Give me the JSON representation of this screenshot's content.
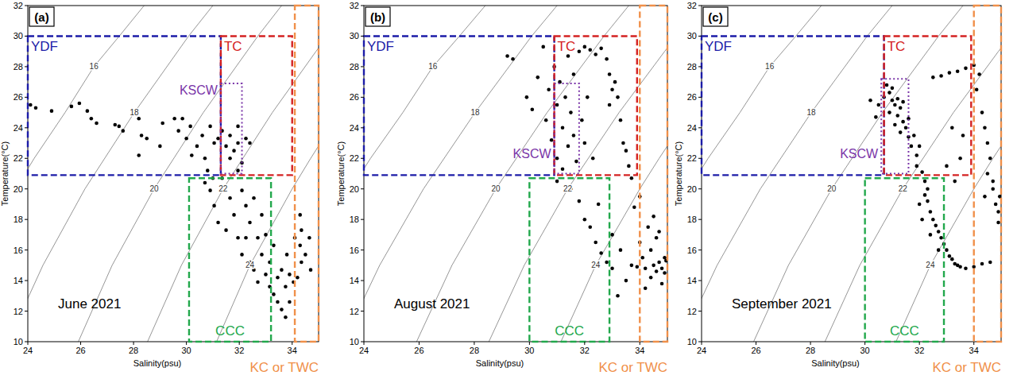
{
  "chart_data": [
    {
      "type": "scatter",
      "panel_label": "(a)",
      "title": "June 2021",
      "x_label": "Salinity(psu)",
      "y_label": "Temperature(°C)",
      "xlim": [
        24,
        35
      ],
      "ylim": [
        10,
        32
      ],
      "xticks": [
        24,
        26,
        28,
        30,
        32,
        34
      ],
      "yticks": [
        10,
        12,
        14,
        16,
        18,
        20,
        22,
        24,
        26,
        28,
        30,
        32
      ],
      "series": [
        {
          "color": "#000000",
          "marker": "circle",
          "x": [
            24.1,
            24.3,
            24.9,
            25.65,
            25.95,
            26.25,
            26.6,
            26.4,
            27.3,
            27.6,
            27.45,
            28.2,
            28.3,
            28.5,
            28.2,
            29.0,
            29.1,
            29.55,
            29.7,
            29.85,
            30.0,
            30.15,
            30.2,
            30.4,
            30.6,
            30.7,
            30.8,
            30.9,
            31.05,
            31.2,
            31.35,
            31.5,
            31.65,
            31.8,
            31.95,
            31.95,
            32.1,
            32.25,
            32.4,
            31.65,
            31.95,
            30.9,
            31.05,
            31.2,
            31.5,
            31.65,
            31.8,
            31.95,
            32.1,
            32.1,
            32.25,
            32.25,
            32.4,
            32.4,
            32.55,
            32.55,
            32.7,
            32.7,
            32.85,
            32.85,
            33.0,
            33.0,
            33.15,
            33.15,
            33.3,
            33.3,
            33.45,
            33.45,
            33.6,
            33.6,
            33.75,
            33.75,
            33.8,
            33.9,
            33.9,
            31.35,
            30.7,
            31.0,
            34.3,
            34.35,
            34.3,
            34.35,
            34.2,
            34.5,
            34.65,
            34.7,
            34.05,
            34.1
          ],
          "values": [
            25.5,
            25.3,
            25.1,
            25.4,
            25.6,
            25.1,
            24.3,
            24.6,
            24.2,
            23.8,
            24.1,
            24.6,
            23.5,
            23.3,
            22.2,
            22.8,
            24.3,
            24.6,
            23.8,
            24.6,
            23.3,
            24.1,
            22.2,
            22.8,
            23.5,
            22.0,
            21.2,
            24.1,
            23.0,
            23.3,
            23.8,
            22.8,
            23.5,
            22.5,
            24.1,
            23.0,
            21.7,
            23.3,
            23.0,
            22.0,
            21.2,
            19.9,
            18.9,
            17.8,
            17.3,
            19.4,
            18.3,
            16.8,
            19.9,
            15.7,
            18.9,
            16.8,
            17.8,
            15.2,
            19.4,
            14.7,
            16.8,
            13.9,
            18.3,
            15.7,
            14.4,
            17.0,
            13.6,
            15.2,
            16.3,
            13.1,
            14.2,
            12.6,
            12.1,
            14.7,
            11.6,
            13.6,
            15.7,
            14.4,
            12.6,
            20.7,
            20.4,
            20.7,
            18.3,
            17.3,
            16.3,
            15.2,
            14.2,
            15.7,
            16.8,
            14.7,
            13.9,
            16.8
          ]
        }
      ],
      "regions": [
        {
          "label": "YDF",
          "color": "#1c1ca8",
          "line_style": "dashed",
          "x": [
            24,
            31.3
          ],
          "y": [
            20.9,
            30
          ]
        },
        {
          "label": "TC",
          "color": "#d42222",
          "line_style": "dashed",
          "x": [
            31.3,
            34
          ],
          "y": [
            20.9,
            30
          ]
        },
        {
          "label": "KSCW",
          "color": "#7a35a8",
          "line_style": "dotted",
          "x": [
            31.3,
            32.1
          ],
          "y": [
            21,
            26.9
          ]
        },
        {
          "label": "CCC",
          "color": "#22a84c",
          "line_style": "dashed",
          "x": [
            30.1,
            33.2
          ],
          "y": [
            10,
            20.7
          ]
        },
        {
          "label": "KC or TWC",
          "color": "#f0904a",
          "line_style": "dashed",
          "x": [
            34.1,
            35
          ],
          "y": [
            10,
            32
          ]
        }
      ],
      "isopycnals": [
        {
          "label": "16",
          "x": [
            23.54,
            24.24,
            25.41,
            26.5,
            27.46,
            28.4
          ],
          "y": [
            20,
            22,
            25,
            28,
            30,
            32
          ]
        },
        {
          "label": "18",
          "x": [
            23.78,
            24.57,
            26.16,
            28.03,
            30.08,
            31.0
          ],
          "y": [
            12,
            15,
            20,
            25,
            30,
            32
          ]
        },
        {
          "label": "20",
          "x": [
            25.91,
            27.19,
            28.78,
            30.64,
            32.7,
            33.6
          ],
          "y": [
            10,
            15,
            20,
            25,
            30,
            32
          ]
        },
        {
          "label": "22",
          "x": [
            28.53,
            29.81,
            31.39,
            33.25,
            34.9,
            35.34
          ],
          "y": [
            10,
            15,
            20,
            25,
            29,
            30
          ]
        },
        {
          "label": "24",
          "x": [
            31.14,
            32.4,
            34.0,
            34.7,
            35.07
          ],
          "y": [
            10,
            15,
            20,
            22,
            23
          ]
        }
      ]
    },
    {
      "type": "scatter",
      "panel_label": "(b)",
      "title": "August 2021",
      "x_label": "Salinity(psu)",
      "y_label": "Temperature(°C)",
      "xlim": [
        24,
        35
      ],
      "ylim": [
        10,
        32
      ],
      "xticks": [
        24,
        26,
        28,
        30,
        32,
        34
      ],
      "yticks": [
        10,
        12,
        14,
        16,
        18,
        20,
        22,
        24,
        26,
        28,
        30,
        32
      ],
      "series": [
        {
          "color": "#000000",
          "marker": "circle",
          "x": [
            29.2,
            29.4,
            29.9,
            30.1,
            30.3,
            30.5,
            30.6,
            30.7,
            30.8,
            30.9,
            31.0,
            31.0,
            31.1,
            31.2,
            31.2,
            31.3,
            31.4,
            31.4,
            31.5,
            31.6,
            31.6,
            31.7,
            31.8,
            31.9,
            32.0,
            32.2,
            32.4,
            32.6,
            32.8,
            32.9,
            33.0,
            33.1,
            33.2,
            32.9,
            33.3,
            33.4,
            33.5,
            33.6,
            33.7,
            32.0,
            32.3,
            32.1,
            31.0,
            31.5,
            31.8,
            32.0,
            32.2,
            32.4,
            32.6,
            32.8,
            33.0,
            32.5,
            33.0,
            33.3,
            33.2,
            33.5,
            33.8,
            34.0,
            34.0,
            34.1,
            34.2,
            34.3,
            34.4,
            34.4,
            34.5,
            34.5,
            34.6,
            34.6,
            34.7,
            34.7,
            34.8,
            34.8,
            34.9,
            33.9,
            33.7,
            34.2,
            34.95,
            34.9
          ],
          "values": [
            28.7,
            28.5,
            26.0,
            25.2,
            27.3,
            29.3,
            24.5,
            26.5,
            23.2,
            28.0,
            22.0,
            25.5,
            27.0,
            24.0,
            21.3,
            26.0,
            22.8,
            28.7,
            25.0,
            23.5,
            27.5,
            21.8,
            29.0,
            24.5,
            29.3,
            29.1,
            28.8,
            29.2,
            28.5,
            27.5,
            26.5,
            27.0,
            26.0,
            25.5,
            24.5,
            23.0,
            22.5,
            21.5,
            20.7,
            23.0,
            22.0,
            26.0,
            20.5,
            20.0,
            19.2,
            18.0,
            17.5,
            16.5,
            15.8,
            15.2,
            14.8,
            19.0,
            17.0,
            16.0,
            13.0,
            14.0,
            18.8,
            19.5,
            16.5,
            15.5,
            14.8,
            17.5,
            16.0,
            14.2,
            18.2,
            15.0,
            16.8,
            14.6,
            17.2,
            15.2,
            14.8,
            13.8,
            15.5,
            14.9,
            15.0,
            13.5,
            15.3,
            14.5
          ]
        }
      ],
      "regions": [
        {
          "label": "YDF",
          "color": "#1c1ca8",
          "line_style": "dashed",
          "x": [
            24,
            30.9
          ],
          "y": [
            20.9,
            30
          ]
        },
        {
          "label": "TC",
          "color": "#d42222",
          "line_style": "dashed",
          "x": [
            30.9,
            33.9
          ],
          "y": [
            20.9,
            30
          ]
        },
        {
          "label": "KSCW",
          "color": "#7a35a8",
          "line_style": "dotted",
          "x": [
            30.9,
            31.8
          ],
          "y": [
            21,
            26.9
          ]
        },
        {
          "label": "CCC",
          "color": "#22a84c",
          "line_style": "dashed",
          "x": [
            30.0,
            32.9
          ],
          "y": [
            10,
            20.7
          ]
        },
        {
          "label": "KC or TWC",
          "color": "#f0904a",
          "line_style": "dashed",
          "x": [
            34.0,
            35
          ],
          "y": [
            10,
            32
          ]
        }
      ],
      "isopycnals": [
        {
          "label": "16",
          "x": [
            23.54,
            24.24,
            25.41,
            26.5,
            27.46,
            28.4
          ],
          "y": [
            20,
            22,
            25,
            28,
            30,
            32
          ]
        },
        {
          "label": "18",
          "x": [
            23.78,
            24.57,
            26.16,
            28.03,
            30.08,
            31.0
          ],
          "y": [
            12,
            15,
            20,
            25,
            30,
            32
          ]
        },
        {
          "label": "20",
          "x": [
            25.91,
            27.19,
            28.78,
            30.64,
            32.7,
            33.6
          ],
          "y": [
            10,
            15,
            20,
            25,
            30,
            32
          ]
        },
        {
          "label": "22",
          "x": [
            28.53,
            29.81,
            31.39,
            33.25,
            34.9,
            35.34
          ],
          "y": [
            10,
            15,
            20,
            25,
            29,
            30
          ]
        },
        {
          "label": "24",
          "x": [
            31.14,
            32.4,
            34.0,
            34.7,
            35.07
          ],
          "y": [
            10,
            15,
            20,
            22,
            23
          ]
        }
      ]
    },
    {
      "type": "scatter",
      "panel_label": "(c)",
      "title": "September 2021",
      "x_label": "Salinity(psu)",
      "y_label": "Temperature(°C)",
      "xlim": [
        24,
        35
      ],
      "ylim": [
        10,
        32
      ],
      "xticks": [
        24,
        26,
        28,
        30,
        32,
        34
      ],
      "yticks": [
        10,
        12,
        14,
        16,
        18,
        20,
        22,
        24,
        26,
        28,
        30,
        32
      ],
      "series": [
        {
          "color": "#000000",
          "marker": "circle",
          "x": [
            30.8,
            30.9,
            31.0,
            31.0,
            31.1,
            31.2,
            31.2,
            31.3,
            31.4,
            31.4,
            31.5,
            31.6,
            31.6,
            31.7,
            31.8,
            31.9,
            31.9,
            32.0,
            32.1,
            32.2,
            30.4,
            30.5,
            30.2,
            30.7,
            30.9,
            31.1,
            31.3,
            32.3,
            32.3,
            32.4,
            32.5,
            32.6,
            32.7,
            32.8,
            32.9,
            33.0,
            33.1,
            33.2,
            33.3,
            33.4,
            33.5,
            33.7,
            34.0,
            34.3,
            34.6,
            32.1,
            32.4,
            32.7,
            32.2,
            32.0,
            32.5,
            32.8,
            33.1,
            33.4,
            33.7,
            34.0,
            34.2,
            34.1,
            34.3,
            34.4,
            34.5,
            34.6,
            34.5,
            34.7,
            34.8,
            34.9,
            34.95,
            34.9,
            34.7,
            34.4,
            33.5,
            33.3,
            33.0,
            33.6,
            33.2
          ],
          "values": [
            26.8,
            26.3,
            25.8,
            26.6,
            25.5,
            25.9,
            24.8,
            25.3,
            24.4,
            25.7,
            24.0,
            23.4,
            24.6,
            22.8,
            23.5,
            22.2,
            21.5,
            22.8,
            21.1,
            20.5,
            24.7,
            25.5,
            25.8,
            26.0,
            25.0,
            24.2,
            23.7,
            20.0,
            19.2,
            18.5,
            18.0,
            17.6,
            17.2,
            16.8,
            16.4,
            16.0,
            15.6,
            15.4,
            15.1,
            15.0,
            14.9,
            14.8,
            14.9,
            15.1,
            15.2,
            18.0,
            17.0,
            16.0,
            19.6,
            19.0,
            27.3,
            27.4,
            27.6,
            27.7,
            27.9,
            28.1,
            27.5,
            26.5,
            25.0,
            24.0,
            23.0,
            22.0,
            21.0,
            20.0,
            19.0,
            18.5,
            19.5,
            17.8,
            20.5,
            19.5,
            22.0,
            20.5,
            21.5,
            23.5,
            24.0
          ]
        }
      ],
      "regions": [
        {
          "label": "YDF",
          "color": "#1c1ca8",
          "line_style": "dashed",
          "x": [
            24,
            30.7
          ],
          "y": [
            20.9,
            30
          ]
        },
        {
          "label": "TC",
          "color": "#d42222",
          "line_style": "dashed",
          "x": [
            30.7,
            33.9
          ],
          "y": [
            20.9,
            30
          ]
        },
        {
          "label": "KSCW",
          "color": "#7a35a8",
          "line_style": "dotted",
          "x": [
            30.6,
            31.6
          ],
          "y": [
            21,
            27.2
          ]
        },
        {
          "label": "CCC",
          "color": "#22a84c",
          "line_style": "dashed",
          "x": [
            30.0,
            32.9
          ],
          "y": [
            10,
            20.7
          ]
        },
        {
          "label": "KC or TWC",
          "color": "#f0904a",
          "line_style": "dashed",
          "x": [
            34.0,
            35
          ],
          "y": [
            10,
            32
          ]
        }
      ],
      "isopycnals": [
        {
          "label": "16",
          "x": [
            23.54,
            24.24,
            25.41,
            26.5,
            27.46,
            28.4
          ],
          "y": [
            20,
            22,
            25,
            28,
            30,
            32
          ]
        },
        {
          "label": "18",
          "x": [
            23.78,
            24.57,
            26.16,
            28.03,
            30.08,
            31.0
          ],
          "y": [
            12,
            15,
            20,
            25,
            30,
            32
          ]
        },
        {
          "label": "20",
          "x": [
            25.91,
            27.19,
            28.78,
            30.64,
            32.7,
            33.6
          ],
          "y": [
            10,
            15,
            20,
            25,
            30,
            32
          ]
        },
        {
          "label": "22",
          "x": [
            28.53,
            29.81,
            31.39,
            33.25,
            34.9,
            35.34
          ],
          "y": [
            10,
            15,
            20,
            25,
            29,
            30
          ]
        },
        {
          "label": "24",
          "x": [
            31.14,
            32.4,
            34.0,
            34.7,
            35.07
          ],
          "y": [
            10,
            15,
            20,
            22,
            23
          ]
        }
      ]
    }
  ]
}
